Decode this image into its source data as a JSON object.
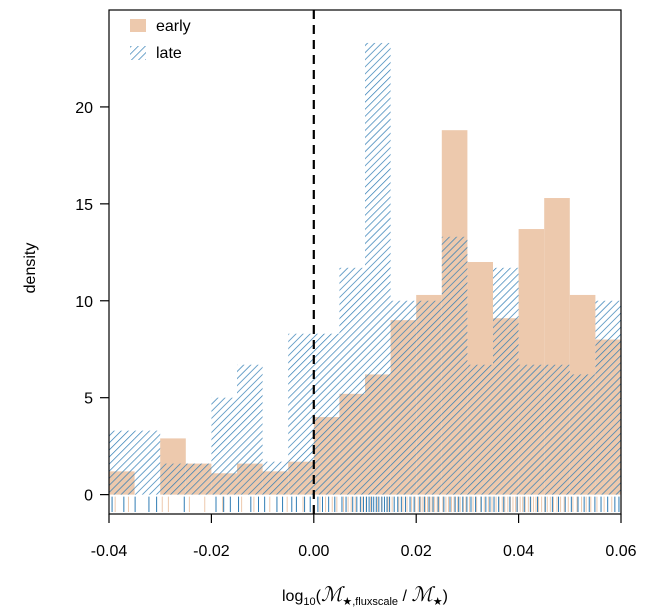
{
  "chart_data": {
    "type": "bar",
    "subtype": "overlaid-histogram-with-rug",
    "ylabel": "density",
    "xlabel_parts": {
      "prefix": "log",
      "sub": "10",
      "open": "(",
      "numerator": "ℳ",
      "numerator_sub": "★,fluxscale",
      "divider": " / ",
      "denominator": "ℳ",
      "denominator_sub": "★",
      "close": ")"
    },
    "xlim": [
      -0.04,
      0.06
    ],
    "ylim": [
      -1,
      25
    ],
    "x_ticks": [
      -0.04,
      -0.02,
      0.0,
      0.02,
      0.04,
      0.06
    ],
    "x_tick_labels": [
      "-0.04",
      "-0.02",
      "0.00",
      "0.02",
      "0.04",
      "0.06"
    ],
    "y_ticks": [
      0,
      5,
      10,
      15,
      20
    ],
    "y_tick_labels": [
      "0",
      "5",
      "10",
      "15",
      "20"
    ],
    "bin_edges": [
      -0.04,
      -0.035,
      -0.03,
      -0.025,
      -0.02,
      -0.015,
      -0.01,
      -0.005,
      0.0,
      0.005,
      0.01,
      0.015,
      0.02,
      0.025,
      0.03,
      0.035,
      0.04,
      0.045,
      0.05,
      0.055,
      0.06
    ],
    "reference_line_x": 0.0,
    "legend_position": "top-left",
    "series": [
      {
        "name": "early",
        "style": "solid",
        "color": "#EDC9AD",
        "values": [
          1.2,
          0,
          2.9,
          1.6,
          1.1,
          1.6,
          1.2,
          1.7,
          4.0,
          5.2,
          6.2,
          9.0,
          10.3,
          18.8,
          12.0,
          9.1,
          13.7,
          15.3,
          10.3,
          8.0
        ]
      },
      {
        "name": "late",
        "style": "hatched",
        "color": "#2F7CB4",
        "values": [
          3.3,
          3.3,
          1.6,
          1.6,
          5.0,
          6.7,
          1.7,
          8.3,
          8.3,
          11.7,
          23.3,
          10.0,
          10.0,
          13.3,
          6.7,
          11.7,
          6.7,
          6.7,
          6.2,
          10.0
        ]
      }
    ],
    "rug": {
      "early_color": "#EDC9AD",
      "late_color": "#2F7CB4",
      "early_x": [
        -0.0388,
        -0.0362,
        -0.0296,
        -0.0284,
        -0.0243,
        -0.0213,
        -0.0178,
        -0.0141,
        -0.0117,
        -0.0086,
        -0.0052,
        -0.0021,
        0.0012,
        0.0023,
        0.0036,
        0.0045,
        0.0058,
        0.0067,
        0.0073,
        0.0081,
        0.0094,
        0.0102,
        0.0111,
        0.0124,
        0.0132,
        0.0145,
        0.0153,
        0.0166,
        0.0174,
        0.0182,
        0.0191,
        0.0198,
        0.0204,
        0.0209,
        0.0213,
        0.0218,
        0.0222,
        0.0227,
        0.0231,
        0.0236,
        0.0241,
        0.0245,
        0.0252,
        0.0258,
        0.0263,
        0.0269,
        0.0274,
        0.0281,
        0.0286,
        0.0292,
        0.0297,
        0.0304,
        0.0311,
        0.0318,
        0.0326,
        0.0333,
        0.0341,
        0.0348,
        0.0356,
        0.0362,
        0.0368,
        0.0373,
        0.0379,
        0.0384,
        0.0389,
        0.0394,
        0.0398,
        0.0403,
        0.0408,
        0.0413,
        0.0419,
        0.0424,
        0.0429,
        0.0434,
        0.0439,
        0.0445,
        0.0451,
        0.0456,
        0.0462,
        0.0468,
        0.0475,
        0.0482,
        0.0489,
        0.0497,
        0.0506,
        0.0514,
        0.0523,
        0.0532,
        0.0541,
        0.0553,
        0.0567,
        0.0582
      ],
      "late_x": [
        -0.0394,
        -0.0371,
        -0.0349,
        -0.0322,
        -0.0307,
        -0.0253,
        -0.0191,
        -0.0176,
        -0.0163,
        -0.0147,
        -0.0123,
        -0.0108,
        -0.0096,
        -0.0072,
        -0.0061,
        -0.0043,
        -0.0034,
        -0.0018,
        -0.0007,
        0.0008,
        0.0017,
        0.0029,
        0.0041,
        0.0055,
        0.0063,
        0.0076,
        0.0084,
        0.0091,
        0.0097,
        0.0103,
        0.0108,
        0.0113,
        0.0117,
        0.0122,
        0.0127,
        0.0133,
        0.0138,
        0.0143,
        0.0148,
        0.0157,
        0.0164,
        0.0171,
        0.0179,
        0.0188,
        0.0196,
        0.0207,
        0.0216,
        0.0225,
        0.0233,
        0.0243,
        0.0254,
        0.0266,
        0.0276,
        0.0283,
        0.0291,
        0.0299,
        0.0307,
        0.0316,
        0.0327,
        0.0336,
        0.0344,
        0.0352,
        0.0361,
        0.0371,
        0.0383,
        0.0397,
        0.0411,
        0.0423,
        0.0437,
        0.0452,
        0.0466,
        0.0478,
        0.0491,
        0.0503,
        0.0516,
        0.0528,
        0.0538,
        0.0549,
        0.0561,
        0.0574,
        0.0588,
        0.0596
      ]
    }
  }
}
